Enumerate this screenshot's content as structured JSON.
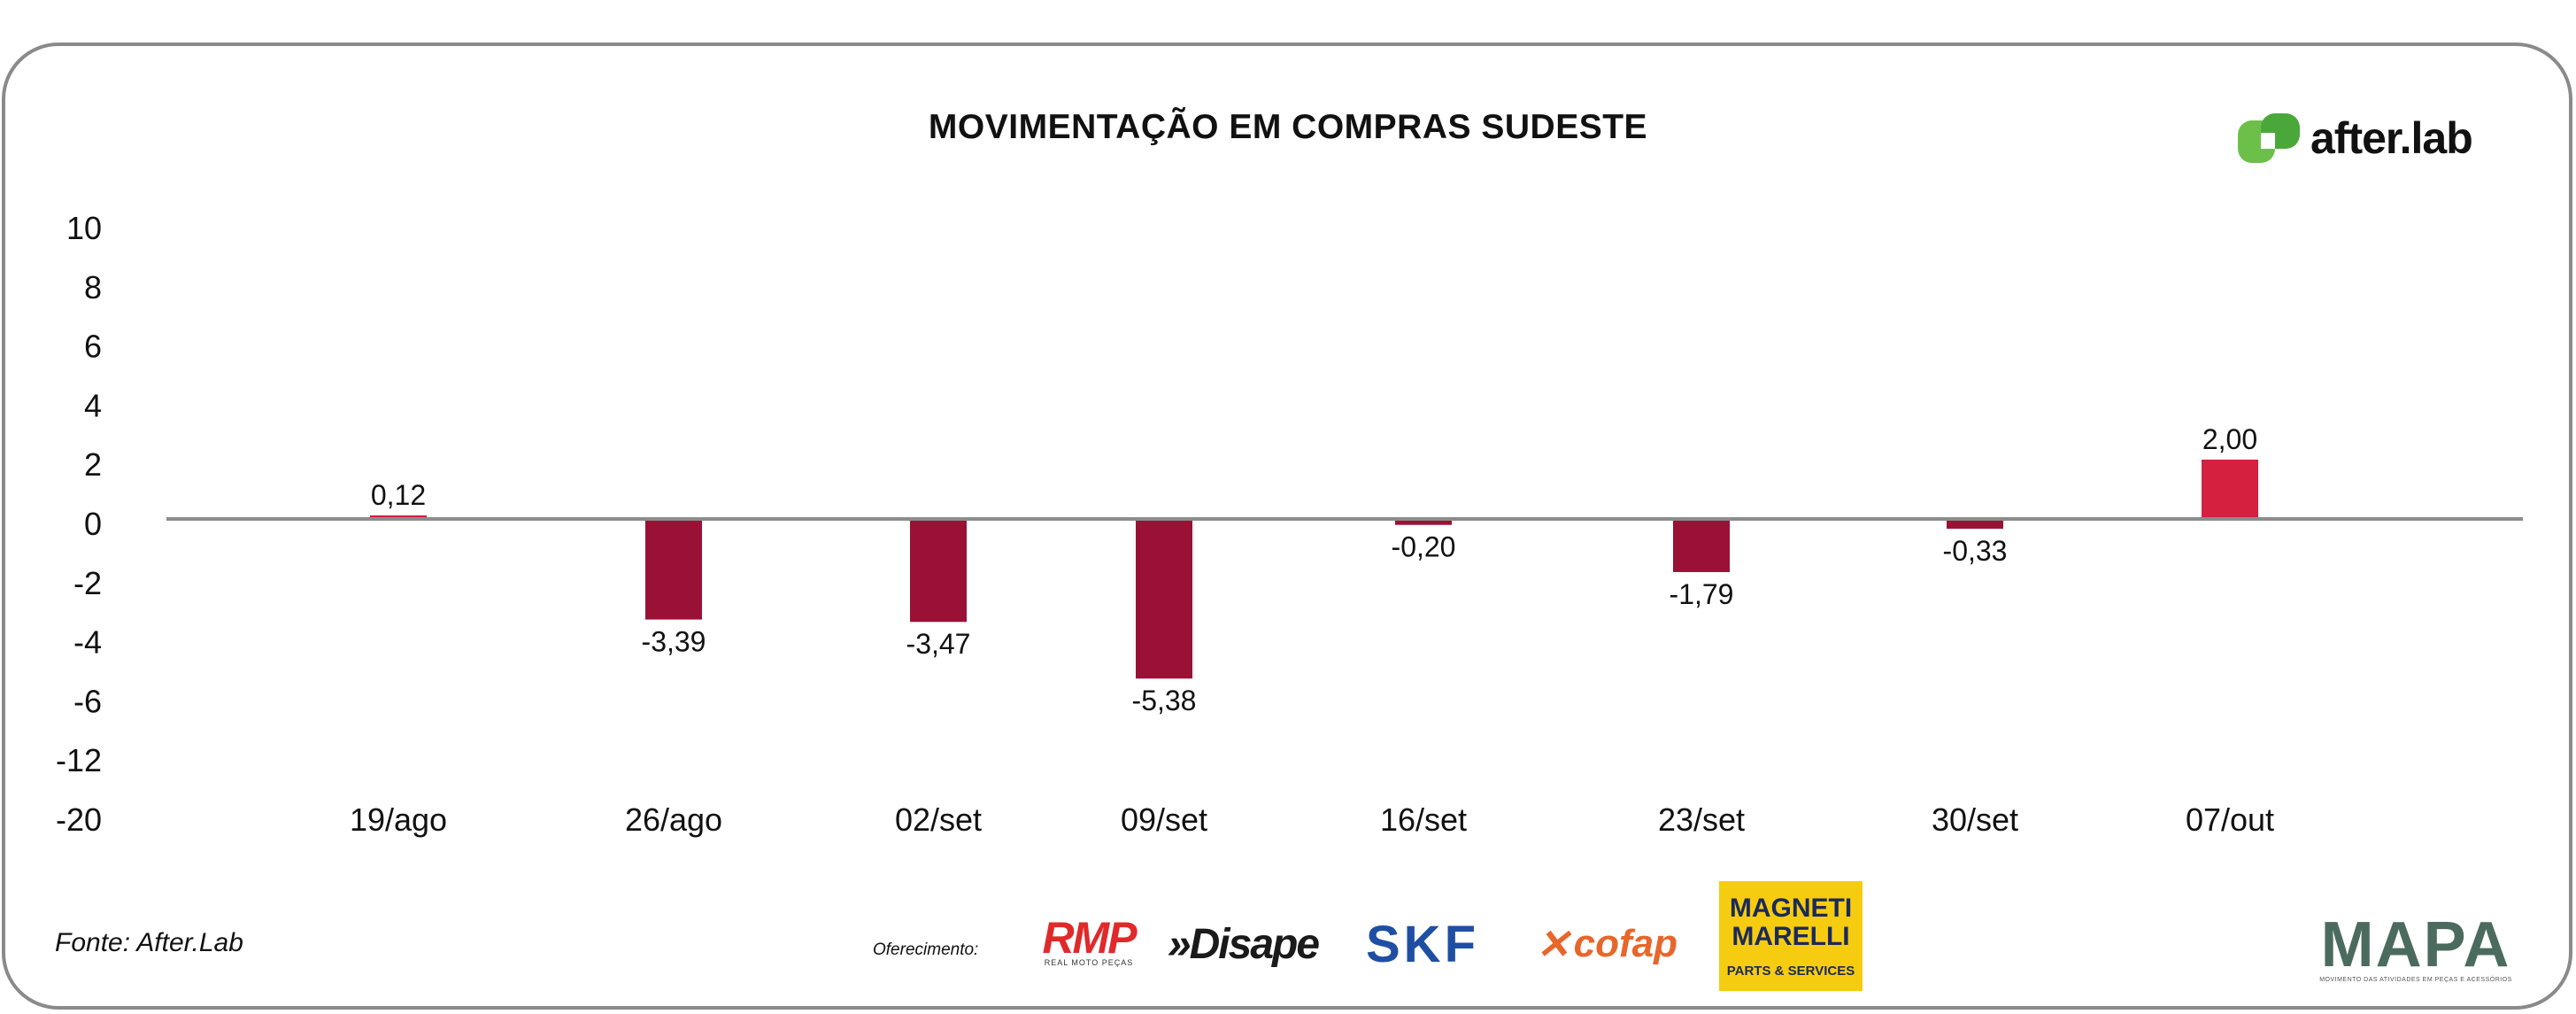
{
  "chart_data": {
    "type": "bar",
    "title": "MOVIMENTAÇÃO EM COMPRAS SUDESTE",
    "categories": [
      "19/ago",
      "26/ago",
      "02/set",
      "09/set",
      "16/set",
      "23/set",
      "30/set",
      "07/out"
    ],
    "values": [
      0.12,
      -3.39,
      -3.47,
      -5.38,
      -0.2,
      -1.79,
      -0.33,
      2.0
    ],
    "value_labels": [
      "0,12",
      "-3,39",
      "-3,47",
      "-5,38",
      "-0,20",
      "-1,79",
      "-0,33",
      "2,00"
    ],
    "y_ticks": [
      "10",
      "8",
      "6",
      "4",
      "2",
      "0",
      "-2",
      "-4",
      "-6",
      "-12",
      "-20"
    ],
    "xlabel": "",
    "ylabel": "",
    "grid": false,
    "legend": "none",
    "colors": {
      "positive": "#d5213f",
      "negative": "#9b1135",
      "axis": "#8c8c8c"
    }
  },
  "source": "Fonte: After.Lab",
  "sponsor_label": "Oferecimento:",
  "logos": {
    "afterlab": "after.lab",
    "rmp": "RMP",
    "rmp_sub": "REAL MOTO PEÇAS",
    "disape": "»Disape",
    "skf": "SKF",
    "cofap": "cofap",
    "magneti": "MAGNETI MARELLI",
    "magneti_sub": "PARTS & SERVICES",
    "mapa": "MAPA",
    "mapa_sub": "MOVIMENTO DAS ATIVIDADES EM PEÇAS E ACESSÓRIOS"
  }
}
